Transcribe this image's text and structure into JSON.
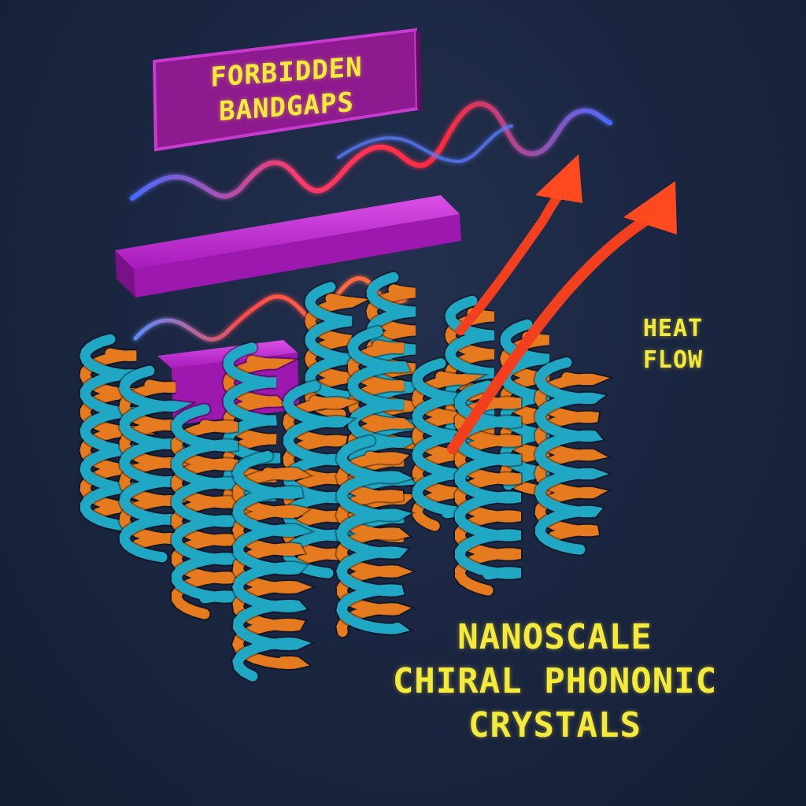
{
  "labels": {
    "bandgap_line1": "FORBIDDEN",
    "bandgap_line2": "BANDGAPS",
    "heat_line1": "HEAT",
    "heat_line2": "FLOW",
    "title_line1": "NANOSCALE",
    "title_line2": "CHIRAL PHONONIC",
    "title_line3": "CRYSTALS"
  },
  "colors": {
    "background": "#1b2742",
    "band_bar": "#b01fc4",
    "helix_orange": "#e57a1e",
    "helix_cyan": "#1fa7c4",
    "arrow_red": "#f2401f",
    "wave_red": "#ff3a4a",
    "wave_blue": "#4a6bff",
    "text_yellow": "#f4ea3c"
  },
  "icons": [
    "helix-column",
    "heat-flow-arrow",
    "phonon-wave",
    "bandgap-bar"
  ]
}
